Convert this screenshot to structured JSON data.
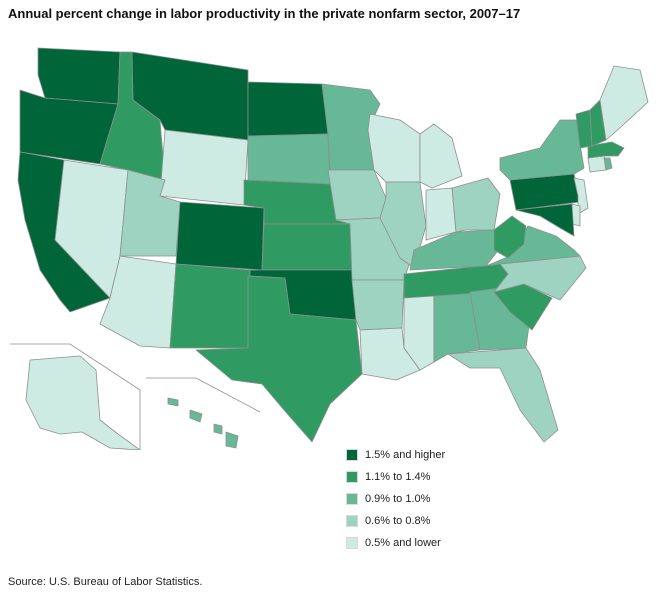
{
  "title": "Annual percent change in labor productivity in the private nonfarm sector, 2007–17",
  "source": "Source: U.S. Bureau of Labor Statistics.",
  "legend": [
    {
      "label": "1.5% and higher",
      "color": "#00663a"
    },
    {
      "label": "1.1% to 1.4%",
      "color": "#2f9a62"
    },
    {
      "label": "0.9% to 1.0%",
      "color": "#66b896"
    },
    {
      "label": "0.6% to 0.8%",
      "color": "#9dd3c0"
    },
    {
      "label": "0.5% and lower",
      "color": "#cdeae3"
    }
  ],
  "map_data": {
    "borderColor": "#8f8f8f",
    "states": {
      "WA": 0,
      "OR": 0,
      "CA": 0,
      "MT": 0,
      "ND": 0,
      "CO": 0,
      "OK": 0,
      "PA": 0,
      "MD": 0,
      "ID": 1,
      "NE": 1,
      "KS": 1,
      "NM": 1,
      "TX": 1,
      "TN": 1,
      "WV": 1,
      "SC": 1,
      "VT": 1,
      "NH": 1,
      "MA": 1,
      "SD": 2,
      "MN": 2,
      "KY": 2,
      "VA": 2,
      "GA": 2,
      "AL": 2,
      "NY": 2,
      "RI": 2,
      "HI": 2,
      "UT": 3,
      "IA": 3,
      "IL": 3,
      "MO": 3,
      "AR": 3,
      "OH": 3,
      "NC": 3,
      "FL": 3,
      "NV": 4,
      "AZ": 4,
      "WY": 4,
      "WI": 4,
      "MI": 4,
      "IN": 4,
      "LA": 4,
      "MS": 4,
      "ME": 4,
      "NJ": 4,
      "CT": 4,
      "DE": 4,
      "AK": 4
    }
  }
}
